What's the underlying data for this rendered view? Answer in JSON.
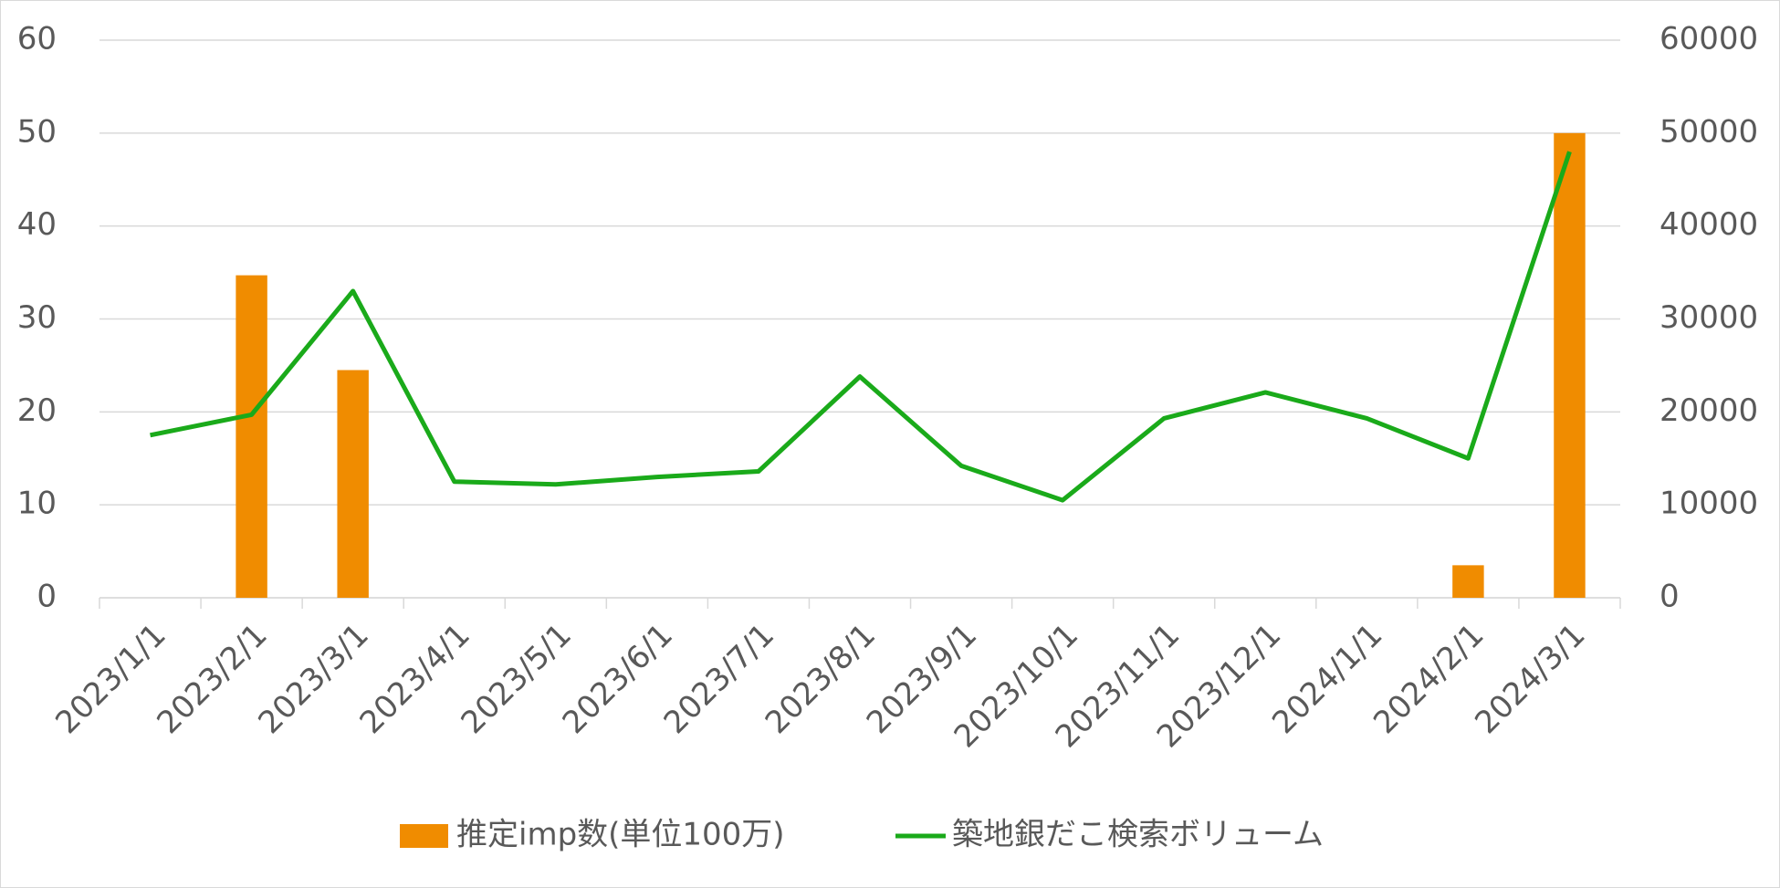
{
  "chart_data": {
    "type": "combo",
    "categories": [
      "2023/1/1",
      "2023/2/1",
      "2023/3/1",
      "2023/4/1",
      "2023/5/1",
      "2023/6/1",
      "2023/7/1",
      "2023/8/1",
      "2023/9/1",
      "2023/10/1",
      "2023/11/1",
      "2023/12/1",
      "2024/1/1",
      "2024/2/1",
      "2024/3/1"
    ],
    "series": [
      {
        "name": "推定imp数(単位100万)",
        "type": "bar",
        "color": "#f08c00",
        "values": [
          null,
          34.7,
          24.5,
          null,
          null,
          null,
          null,
          null,
          null,
          null,
          null,
          null,
          null,
          3.5,
          50
        ]
      },
      {
        "name": "築地銀だこ検索ボリューム",
        "type": "line",
        "axis": "y2",
        "color": "#1aaa1a",
        "values": [
          17500,
          19700,
          33000,
          12500,
          12200,
          13000,
          13600,
          23800,
          14200,
          10500,
          19300,
          22100,
          19300,
          15000,
          48000
        ]
      }
    ],
    "ylim": [
      0,
      60
    ],
    "yticks": [
      0,
      10,
      20,
      30,
      40,
      50,
      60
    ],
    "y2lim": [
      0,
      60000
    ],
    "y2ticks": [
      0,
      10000,
      20000,
      30000,
      40000,
      50000,
      60000
    ],
    "grid": true,
    "legend": "bottom"
  }
}
